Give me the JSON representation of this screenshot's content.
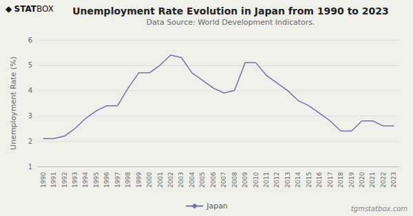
{
  "chart_data": {
    "type": "line",
    "title": "Unemployment Rate Evolution in Japan from 1990 to 2023",
    "subtitle": "Data Source: World Development Indicators.",
    "ylabel": "Unemployment Rate (%)",
    "x": [
      1990,
      1991,
      1992,
      1993,
      1994,
      1995,
      1996,
      1997,
      1998,
      1999,
      2000,
      2001,
      2002,
      2003,
      2004,
      2005,
      2006,
      2007,
      2008,
      2009,
      2010,
      2011,
      2012,
      2013,
      2014,
      2015,
      2016,
      2017,
      2018,
      2019,
      2020,
      2021,
      2022,
      2023
    ],
    "series": [
      {
        "name": "Japan",
        "color": "#7b6ba8",
        "values": [
          2.1,
          2.1,
          2.2,
          2.5,
          2.9,
          3.2,
          3.4,
          3.4,
          4.1,
          4.7,
          4.7,
          5.0,
          5.4,
          5.3,
          4.7,
          4.4,
          4.1,
          3.9,
          4.0,
          5.1,
          5.1,
          4.6,
          4.3,
          4.0,
          3.6,
          3.4,
          3.1,
          2.8,
          2.4,
          2.4,
          2.8,
          2.8,
          2.6,
          2.6
        ]
      }
    ],
    "xlim": [
      1989.5,
      2023.5
    ],
    "xticks": [
      1990,
      1991,
      1992,
      1993,
      1994,
      1995,
      1996,
      1997,
      1998,
      1999,
      2000,
      2001,
      2002,
      2003,
      2004,
      2005,
      2006,
      2007,
      2008,
      2009,
      2010,
      2011,
      2012,
      2013,
      2014,
      2015,
      2016,
      2017,
      2018,
      2019,
      2020,
      2021,
      2022,
      2023
    ],
    "ylim": [
      1,
      6
    ],
    "yticks": [
      1,
      2,
      3,
      4,
      5,
      6
    ],
    "grid": true,
    "legend": "bottom",
    "background_color": "#f0f0eb",
    "logo": [
      "◆",
      "STAT",
      "BOX"
    ],
    "watermark": "tgmstatbox.com"
  }
}
